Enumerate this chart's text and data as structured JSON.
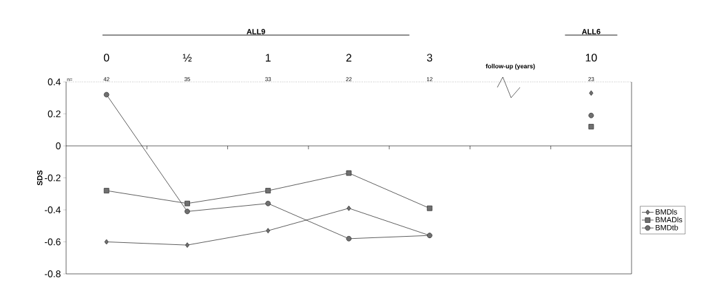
{
  "chart_data": {
    "type": "line",
    "xlabel": "follow-up (years)",
    "ylabel": "SDS",
    "categories": [
      "0",
      "½",
      "1",
      "2",
      "3",
      null,
      "10"
    ],
    "series": [
      {
        "name": "BMDls",
        "color": "#333333",
        "marker": "diamond",
        "values": [
          -0.6,
          -0.62,
          -0.53,
          -0.39,
          -0.56,
          null,
          0.33
        ]
      },
      {
        "name": "BMADls",
        "color": "#333333",
        "marker": "square",
        "values": [
          -0.28,
          -0.36,
          -0.28,
          -0.17,
          -0.39,
          null,
          0.12
        ]
      },
      {
        "name": "BMDtb",
        "color": "#333333",
        "marker": "circle",
        "values": [
          0.32,
          -0.41,
          -0.36,
          -0.58,
          -0.56,
          null,
          0.19
        ]
      }
    ],
    "ylim": [
      -0.8,
      0.4
    ],
    "yticks": [
      -0.8,
      -0.6,
      -0.4,
      -0.2,
      0,
      0.2,
      0.4
    ],
    "legend": "right",
    "annotations": [
      "ALL9",
      "ALL6",
      "n=",
      "42",
      "35",
      "33",
      "22",
      "12",
      "23"
    ]
  }
}
